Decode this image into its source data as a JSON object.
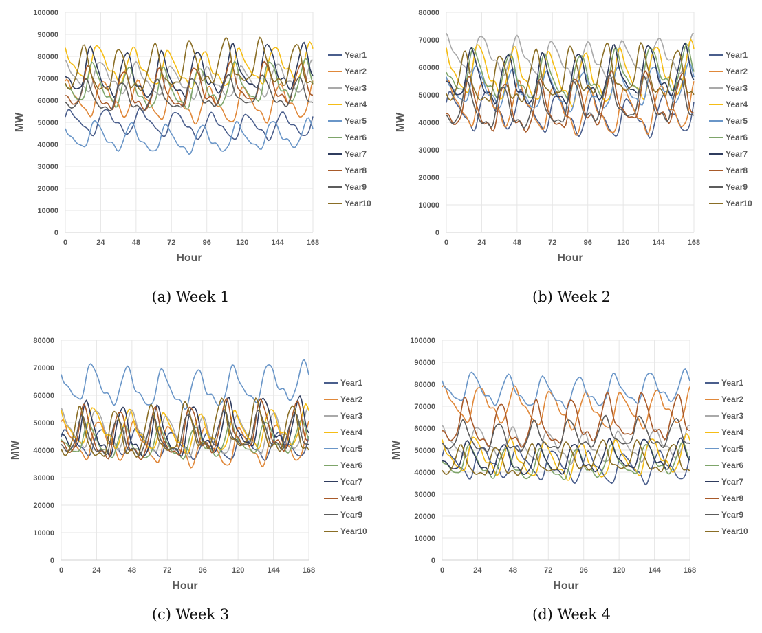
{
  "colors": {
    "Year1": "#4a5e8c",
    "Year2": "#e0883a",
    "Year3": "#a9a9a9",
    "Year4": "#f5bd16",
    "Year5": "#6a96c8",
    "Year6": "#7ea56a",
    "Year7": "#2f3c5e",
    "Year8": "#a85a2a",
    "Year9": "#5c5c5c",
    "Year10": "#8a6e26"
  },
  "chart_data": [
    {
      "type": "line",
      "caption": "(a) Week 1",
      "xlabel": "Hour",
      "ylabel": "MW",
      "xlim": [
        0,
        168
      ],
      "ylim": [
        0,
        100000
      ],
      "xticks": [
        0,
        24,
        48,
        72,
        96,
        120,
        144,
        168
      ],
      "yticks": [
        0,
        10000,
        20000,
        30000,
        40000,
        50000,
        60000,
        70000,
        80000,
        90000,
        100000
      ],
      "grid": true,
      "legend": "right",
      "sample_hours": [
        0,
        6,
        12,
        18,
        24
      ],
      "series": [
        {
          "name": "Year1",
          "base": 49000,
          "amp": 5000,
          "phase": 0.4
        },
        {
          "name": "Year2",
          "base": 59000,
          "amp": 7000,
          "phase": 0.9
        },
        {
          "name": "Year3",
          "base": 69000,
          "amp": 6000,
          "phase": 1.3
        },
        {
          "name": "Year4",
          "base": 75000,
          "amp": 7000,
          "phase": 1.8
        },
        {
          "name": "Year5",
          "base": 43000,
          "amp": 5500,
          "phase": 2.2
        },
        {
          "name": "Year6",
          "base": 66000,
          "amp": 8000,
          "phase": 2.7
        },
        {
          "name": "Year7",
          "base": 72000,
          "amp": 9000,
          "phase": 3.1
        },
        {
          "name": "Year8",
          "base": 65000,
          "amp": 8000,
          "phase": 3.6
        },
        {
          "name": "Year9",
          "base": 62000,
          "amp": 6000,
          "phase": 4.0
        },
        {
          "name": "Year10",
          "base": 74000,
          "amp": 9000,
          "phase": 4.5
        }
      ]
    },
    {
      "type": "line",
      "caption": "(b) Week 2",
      "xlabel": "Hour",
      "ylabel": "MW",
      "xlim": [
        0,
        168
      ],
      "ylim": [
        0,
        80000
      ],
      "xticks": [
        0,
        24,
        48,
        72,
        96,
        120,
        144,
        168
      ],
      "yticks": [
        0,
        10000,
        20000,
        30000,
        40000,
        50000,
        60000,
        70000,
        80000
      ],
      "grid": true,
      "legend": "right",
      "series": [
        {
          "name": "Year1",
          "base": 43000,
          "amp": 6000,
          "phase": 0.4
        },
        {
          "name": "Year2",
          "base": 45000,
          "amp": 7000,
          "phase": 0.9
        },
        {
          "name": "Year3",
          "base": 63000,
          "amp": 6000,
          "phase": 1.3
        },
        {
          "name": "Year4",
          "base": 57000,
          "amp": 8000,
          "phase": 1.8
        },
        {
          "name": "Year5",
          "base": 52000,
          "amp": 6000,
          "phase": 2.2
        },
        {
          "name": "Year6",
          "base": 57000,
          "amp": 7000,
          "phase": 2.7
        },
        {
          "name": "Year7",
          "base": 56000,
          "amp": 8000,
          "phase": 3.1
        },
        {
          "name": "Year8",
          "base": 46000,
          "amp": 8000,
          "phase": 3.6
        },
        {
          "name": "Year9",
          "base": 46000,
          "amp": 7000,
          "phase": 4.0
        },
        {
          "name": "Year10",
          "base": 56000,
          "amp": 8000,
          "phase": 4.5
        }
      ]
    },
    {
      "type": "line",
      "caption": "(c) Week 3",
      "xlabel": "Hour",
      "ylabel": "MW",
      "xlim": [
        0,
        168
      ],
      "ylim": [
        0,
        80000
      ],
      "xticks": [
        0,
        24,
        48,
        72,
        96,
        120,
        144,
        168
      ],
      "yticks": [
        0,
        10000,
        20000,
        30000,
        40000,
        50000,
        60000,
        70000,
        80000
      ],
      "grid": true,
      "legend": "right",
      "series": [
        {
          "name": "Year1",
          "base": 42000,
          "amp": 4000,
          "phase": 0.4
        },
        {
          "name": "Year2",
          "base": 42000,
          "amp": 6000,
          "phase": 0.9
        },
        {
          "name": "Year3",
          "base": 46000,
          "amp": 6000,
          "phase": 1.3
        },
        {
          "name": "Year4",
          "base": 47000,
          "amp": 6000,
          "phase": 1.8
        },
        {
          "name": "Year5",
          "base": 63000,
          "amp": 6000,
          "phase": 2.2
        },
        {
          "name": "Year6",
          "base": 43000,
          "amp": 5000,
          "phase": 2.7
        },
        {
          "name": "Year7",
          "base": 47000,
          "amp": 8000,
          "phase": 3.1
        },
        {
          "name": "Year8",
          "base": 46000,
          "amp": 8000,
          "phase": 3.6
        },
        {
          "name": "Year9",
          "base": 45000,
          "amp": 6000,
          "phase": 4.0
        },
        {
          "name": "Year10",
          "base": 46000,
          "amp": 8000,
          "phase": 4.5
        }
      ]
    },
    {
      "type": "line",
      "caption": "(d) Week 4",
      "xlabel": "Hour",
      "ylabel": "MW",
      "xlim": [
        0,
        168
      ],
      "ylim": [
        0,
        100000
      ],
      "xticks": [
        0,
        24,
        48,
        72,
        96,
        120,
        144,
        168
      ],
      "yticks": [
        0,
        10000,
        20000,
        30000,
        40000,
        50000,
        60000,
        70000,
        80000,
        90000,
        100000
      ],
      "grid": true,
      "legend": "right",
      "series": [
        {
          "name": "Year1",
          "base": 43000,
          "amp": 6000,
          "phase": 0.4
        },
        {
          "name": "Year2",
          "base": 69000,
          "amp": 7000,
          "phase": 0.9
        },
        {
          "name": "Year3",
          "base": 52000,
          "amp": 6000,
          "phase": 1.3
        },
        {
          "name": "Year4",
          "base": 46000,
          "amp": 7000,
          "phase": 1.8
        },
        {
          "name": "Year5",
          "base": 77000,
          "amp": 6000,
          "phase": 2.2
        },
        {
          "name": "Year6",
          "base": 44000,
          "amp": 6000,
          "phase": 2.7
        },
        {
          "name": "Year7",
          "base": 46000,
          "amp": 6000,
          "phase": 3.1
        },
        {
          "name": "Year8",
          "base": 62000,
          "amp": 9000,
          "phase": 3.6
        },
        {
          "name": "Year9",
          "base": 56000,
          "amp": 6000,
          "phase": 4.0
        },
        {
          "name": "Year10",
          "base": 45000,
          "amp": 6000,
          "phase": 4.5
        }
      ]
    }
  ]
}
